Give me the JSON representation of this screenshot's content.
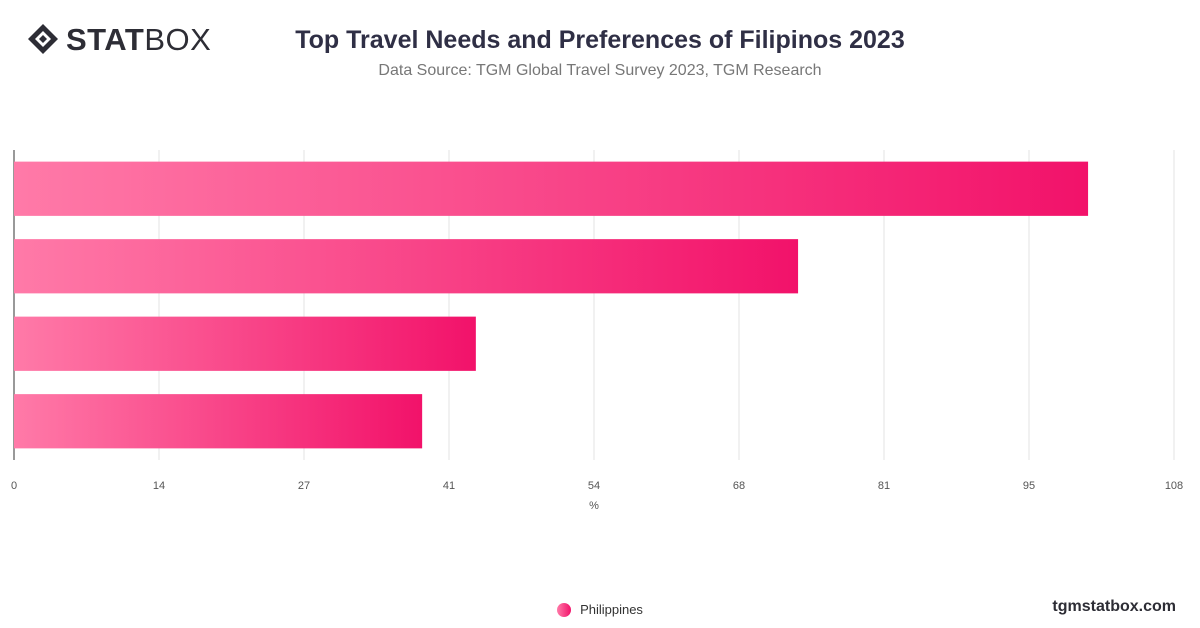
{
  "header": {
    "logo_bold": "STAT",
    "logo_light": "BOX",
    "title": "Top Travel Needs and Preferences of Filipinos 2023",
    "subtitle": "Data Source: TGM Global Travel Survey 2023, TGM Research"
  },
  "footer": {
    "site": "tgmstatbox.com"
  },
  "colors": {
    "bar_start": "#ff7aa8",
    "bar_end": "#f2126a",
    "grid": "#e3e3e3",
    "axis_text": "#555555"
  },
  "chart_data": {
    "type": "bar",
    "orientation": "horizontal",
    "categories": [
      "",
      "",
      "",
      ""
    ],
    "series": [
      {
        "name": "Philippines",
        "values": [
          100,
          73,
          43,
          38
        ]
      }
    ],
    "xlabel": "%",
    "xlim": [
      0,
      108
    ],
    "xticks": [
      "0",
      "14",
      "27",
      "41",
      "54",
      "68",
      "81",
      "95",
      "108"
    ],
    "grid": true,
    "legend": "bottom-center"
  }
}
